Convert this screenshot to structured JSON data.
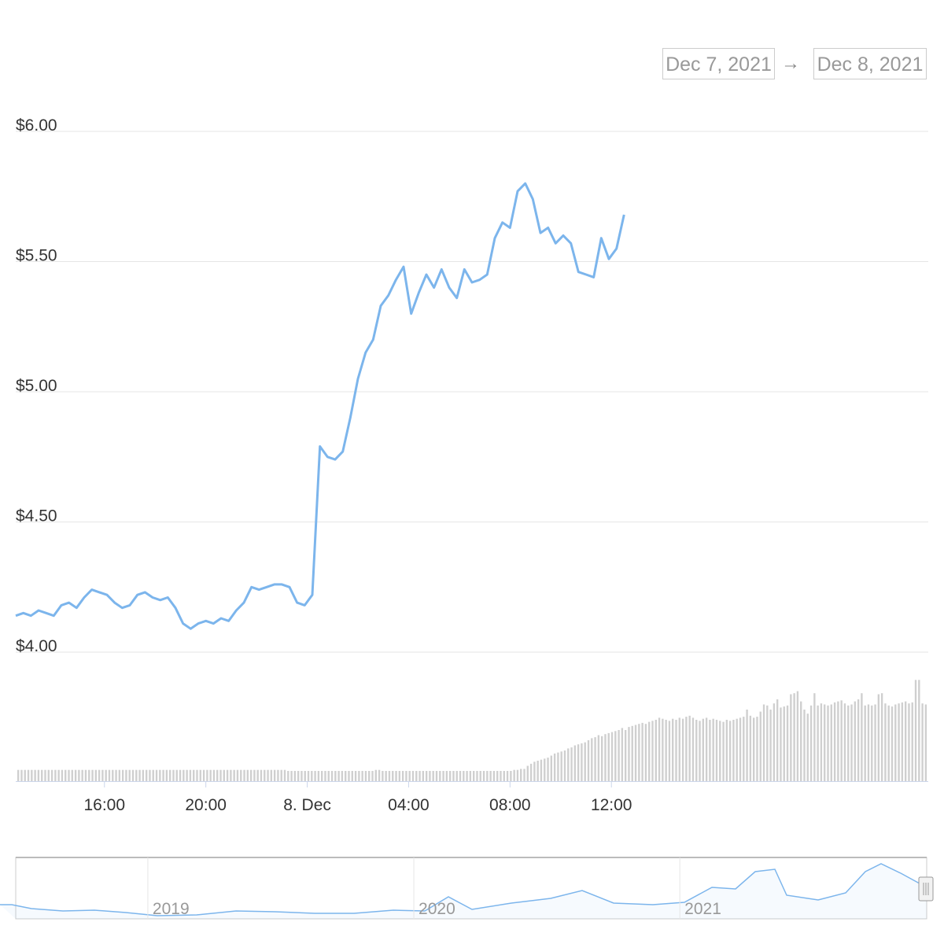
{
  "range_selector": {
    "from": "Dec 7, 2021",
    "arrow": "→",
    "to": "Dec 8, 2021"
  },
  "chart_data": {
    "type": "line",
    "y_ticks": [
      "$6.00",
      "$5.50",
      "$5.00",
      "$4.50",
      "$4.00"
    ],
    "y_tick_values": [
      6.0,
      5.5,
      5.0,
      4.5,
      4.0
    ],
    "ylim": [
      4.0,
      6.0
    ],
    "xlim_hours": [
      0,
      36
    ],
    "x_ticks": [
      "16:00",
      "20:00",
      "8. Dec",
      "04:00",
      "08:00",
      "12:00"
    ],
    "x_tick_hours": [
      3.5,
      7.5,
      11.5,
      15.5,
      19.5,
      23.5
    ],
    "grid": true,
    "line_color": "#7cb5ec",
    "series": [
      {
        "x_hours": [
          0.0,
          0.3,
          0.6,
          0.9,
          1.2,
          1.5,
          1.8,
          2.1,
          2.4,
          2.7,
          3.0,
          3.3,
          3.6,
          3.9,
          4.2,
          4.5,
          4.8,
          5.1,
          5.4,
          5.7,
          6.0,
          6.3,
          6.6,
          6.9,
          7.2,
          7.5,
          7.8,
          8.1,
          8.4,
          8.7,
          9.0,
          9.3,
          9.6,
          9.9,
          10.2,
          10.5,
          10.8,
          11.1,
          11.4,
          11.7,
          12.0,
          12.3,
          12.6,
          12.9,
          13.2,
          13.5,
          13.8,
          14.1,
          14.4,
          14.7,
          15.0,
          15.3,
          15.6,
          15.9,
          16.2,
          16.5,
          16.8,
          17.1,
          17.4,
          17.7,
          18.0,
          18.3,
          18.6,
          18.9,
          19.2,
          19.5,
          19.8,
          20.1,
          20.4,
          20.7,
          21.0,
          21.3,
          21.6,
          21.9,
          22.2,
          22.5,
          22.8,
          23.1,
          23.4,
          23.7,
          24.0
        ],
        "values": [
          4.14,
          4.15,
          4.14,
          4.16,
          4.15,
          4.14,
          4.18,
          4.19,
          4.17,
          4.21,
          4.24,
          4.23,
          4.22,
          4.19,
          4.17,
          4.18,
          4.22,
          4.23,
          4.21,
          4.2,
          4.21,
          4.17,
          4.11,
          4.09,
          4.11,
          4.12,
          4.11,
          4.13,
          4.12,
          4.16,
          4.19,
          4.25,
          4.24,
          4.25,
          4.26,
          4.26,
          4.25,
          4.19,
          4.18,
          4.22,
          4.79,
          4.75,
          4.74,
          4.77,
          4.9,
          5.05,
          5.15,
          5.2,
          5.33,
          5.37,
          5.43,
          5.48,
          5.3,
          5.38,
          5.45,
          5.4,
          5.47,
          5.4,
          5.36,
          5.47,
          5.42,
          5.43,
          5.45,
          5.59,
          5.65,
          5.63,
          5.77,
          5.8,
          5.74,
          5.61,
          5.63,
          5.57,
          5.6,
          5.57,
          5.46,
          5.45,
          5.44,
          5.59,
          5.51,
          5.55,
          5.68
        ]
      }
    ],
    "volume": {
      "type": "bar",
      "values": [
        11,
        11,
        11,
        11,
        11,
        11,
        11,
        11,
        11,
        11,
        11,
        11,
        11,
        11,
        11,
        11,
        11,
        11,
        11,
        11,
        11,
        11,
        11,
        11,
        11,
        11,
        11,
        11,
        11,
        11,
        11,
        11,
        11,
        11,
        11,
        11,
        11,
        11,
        11,
        11,
        11,
        11,
        11,
        11,
        11,
        11,
        11,
        11,
        11,
        11,
        11,
        11,
        11,
        11,
        11,
        11,
        11,
        11,
        11,
        11,
        11,
        11,
        11,
        11,
        11,
        11,
        11,
        11,
        11,
        11,
        11,
        11,
        11,
        11,
        11,
        11,
        11,
        11,
        11,
        11,
        10,
        10,
        10,
        10,
        10,
        10,
        10,
        10,
        10,
        10,
        10,
        10,
        10,
        10,
        10,
        10,
        10,
        10,
        10,
        10,
        10,
        10,
        10,
        10,
        10,
        10,
        11,
        11,
        10,
        10,
        10,
        10,
        10,
        10,
        10,
        10,
        10,
        10,
        10,
        10,
        10,
        10,
        10,
        10,
        10,
        10,
        10,
        10,
        10,
        10,
        10,
        10,
        10,
        10,
        10,
        10,
        10,
        10,
        10,
        10,
        10,
        10,
        10,
        10,
        10,
        10,
        10,
        11,
        11,
        12,
        12,
        15,
        17,
        19,
        20,
        21,
        22,
        23,
        25,
        27,
        28,
        29,
        30,
        32,
        33,
        35,
        36,
        37,
        38,
        40,
        42,
        43,
        45,
        44,
        46,
        47,
        48,
        49,
        50,
        52,
        50,
        53,
        54,
        55,
        56,
        57,
        56,
        58,
        59,
        60,
        62,
        61,
        60,
        59,
        61,
        60,
        62,
        61,
        63,
        64,
        62,
        60,
        59,
        61,
        62,
        60,
        61,
        60,
        59,
        58,
        60,
        59,
        60,
        61,
        62,
        63,
        70,
        64,
        62,
        63,
        68,
        75,
        74,
        70,
        76,
        80,
        72,
        73,
        74,
        85,
        86,
        88,
        78,
        70,
        66,
        74,
        86,
        74,
        76,
        75,
        74,
        75,
        77,
        78,
        79,
        76,
        74,
        75,
        78,
        80,
        86,
        74,
        75,
        74,
        75,
        85,
        86,
        76,
        74,
        73,
        75,
        76,
        77,
        78,
        76,
        77,
        99,
        99,
        76,
        75
      ]
    },
    "navigator": {
      "x_ticks": [
        "2019",
        "2020",
        "2021"
      ],
      "x_tick_fractions": [
        0.145,
        0.437,
        0.729
      ]
    }
  }
}
